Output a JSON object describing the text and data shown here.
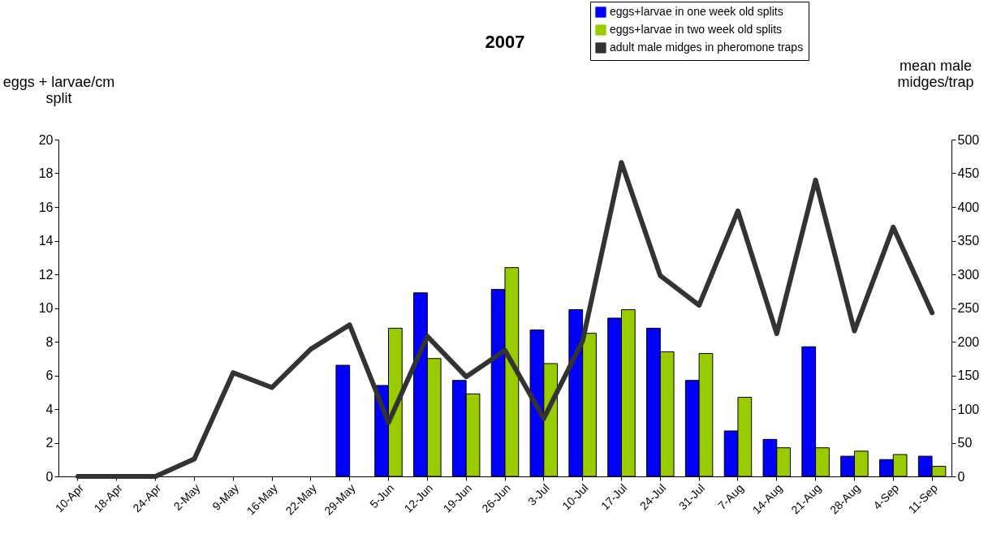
{
  "chart_data": {
    "type": "bar",
    "title": "2007",
    "ylabel": "eggs + larvae/cm split",
    "y2label": "mean male midges/trap",
    "categories": [
      "10-Apr",
      "18-Apr",
      "24-Apr",
      "2-May",
      "9-May",
      "16-May",
      "22-May",
      "29-May",
      "5-Jun",
      "12-Jun",
      "19-Jun",
      "26-Jun",
      "3-Jul",
      "10-Jul",
      "17-Jul",
      "24-Jul",
      "31-Jul",
      "7-Aug",
      "14-Aug",
      "21-Aug",
      "28-Aug",
      "4-Sep",
      "11-Sep"
    ],
    "series": [
      {
        "name": "eggs+larvae in one week old splits",
        "color": "#0000ff",
        "values": [
          null,
          null,
          null,
          null,
          null,
          null,
          null,
          6.6,
          5.4,
          10.9,
          5.7,
          11.1,
          8.7,
          9.9,
          9.4,
          8.8,
          5.7,
          2.7,
          2.2,
          7.7,
          1.2,
          1.0,
          1.2
        ]
      },
      {
        "name": "eggs+larvae in two week old splits",
        "color": "#99cc00",
        "values": [
          null,
          null,
          null,
          null,
          null,
          null,
          null,
          null,
          8.8,
          7.0,
          4.9,
          12.4,
          6.7,
          8.5,
          9.9,
          7.4,
          7.3,
          4.7,
          1.7,
          1.7,
          1.5,
          1.3,
          0.6
        ]
      },
      {
        "name": "adult male midges in pheromone traps",
        "color": "#333333",
        "type": "line",
        "axis": "y2",
        "values": [
          0,
          0,
          0,
          26,
          154,
          132,
          189,
          225,
          80,
          208,
          148,
          187,
          86,
          201,
          466,
          298,
          254,
          394,
          212,
          440,
          216,
          370,
          243
        ]
      }
    ],
    "ylim": [
      0,
      20
    ],
    "yticks": [
      0,
      2,
      4,
      6,
      8,
      10,
      12,
      14,
      16,
      18,
      20
    ],
    "y2lim": [
      0,
      500
    ],
    "y2ticks": [
      0,
      50,
      100,
      150,
      200,
      250,
      300,
      350,
      400,
      450,
      500
    ],
    "grid": false,
    "legend": "top right",
    "marker": "none",
    "line_style": "solid"
  }
}
